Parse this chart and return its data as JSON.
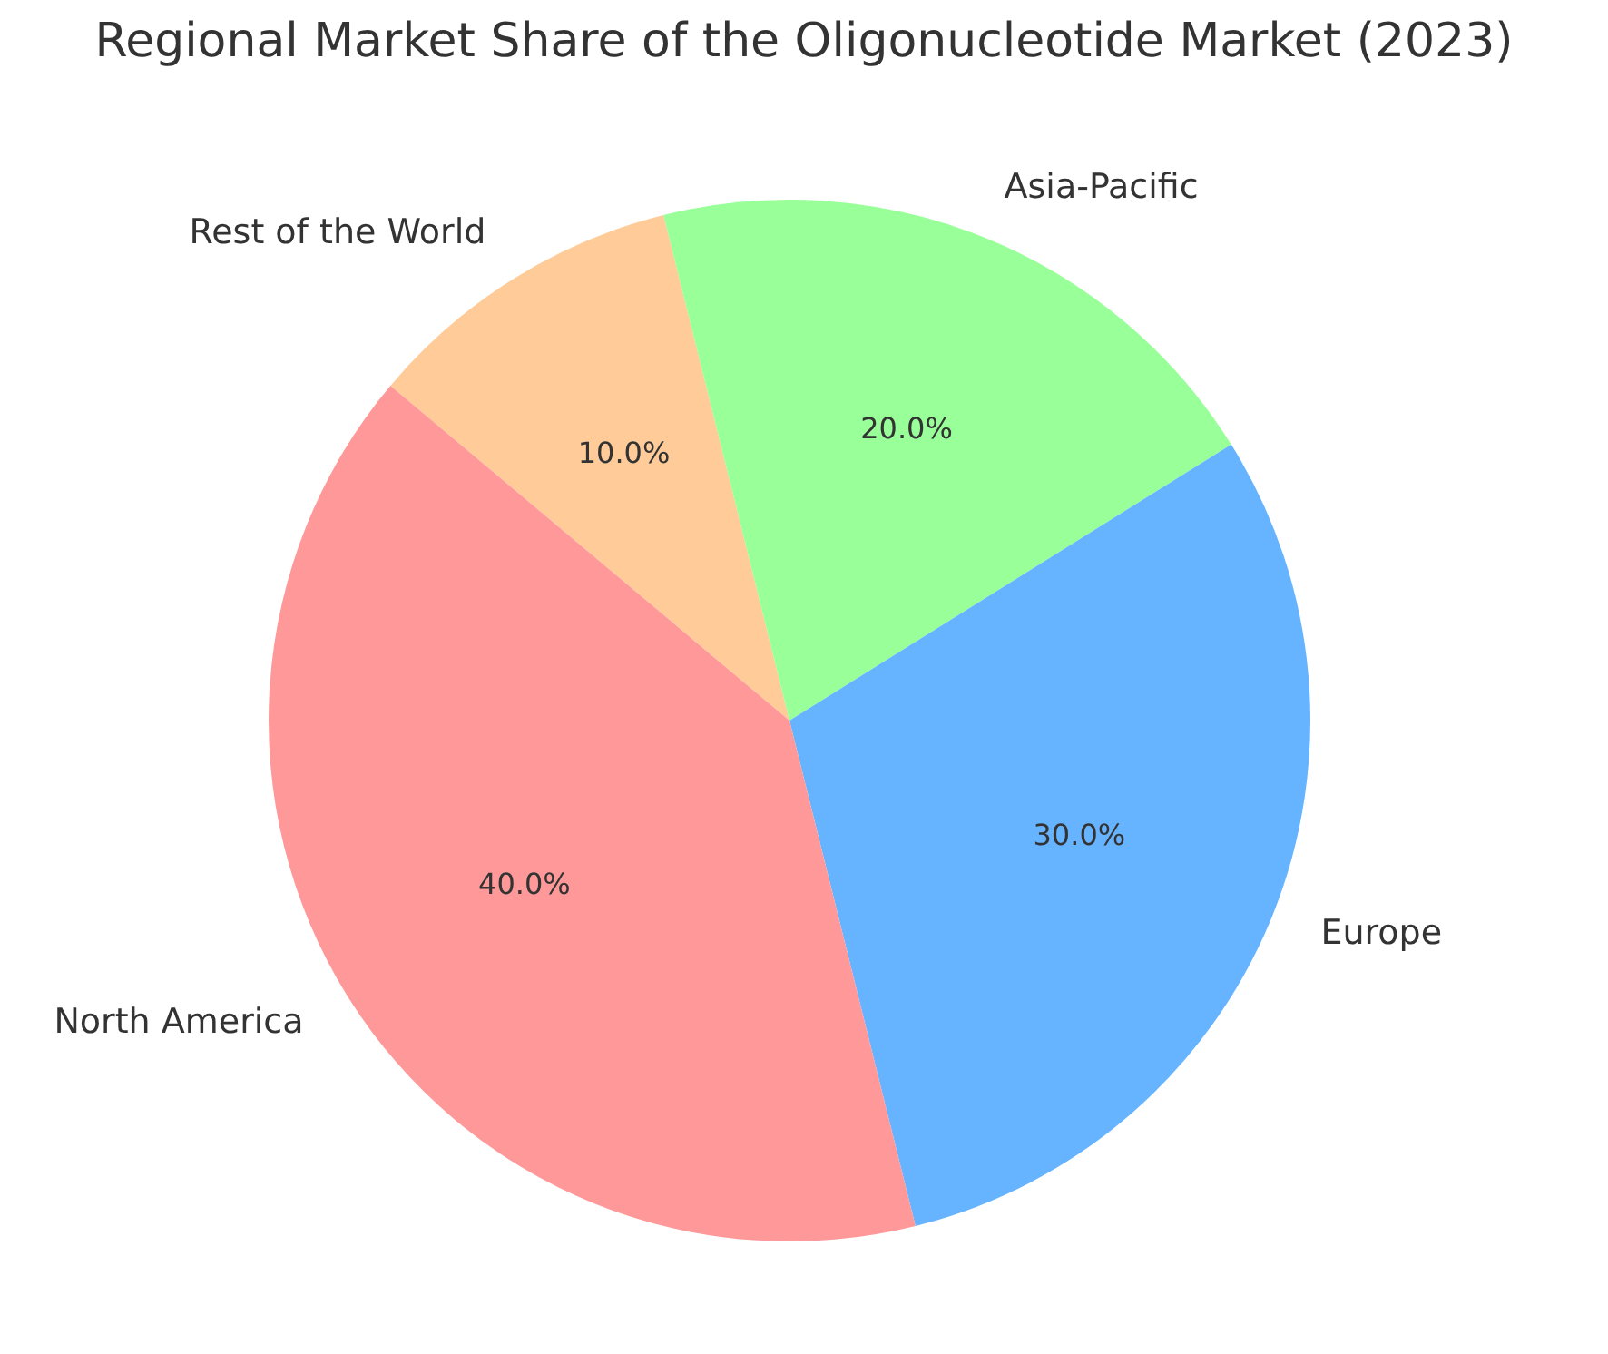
{
  "chart_data": {
    "type": "pie",
    "title": "Regional Market Share of the Oligonucleotide Market (2023)",
    "categories": [
      "North America",
      "Europe",
      "Asia-Pacific",
      "Rest of the World"
    ],
    "values": [
      40,
      30,
      20,
      10
    ],
    "colors": [
      "#ff9999",
      "#66b3ff",
      "#99ff99",
      "#ffcc99"
    ],
    "value_labels": [
      "40.0%",
      "30.0%",
      "20.0%",
      "10.0%"
    ],
    "legend": false
  }
}
